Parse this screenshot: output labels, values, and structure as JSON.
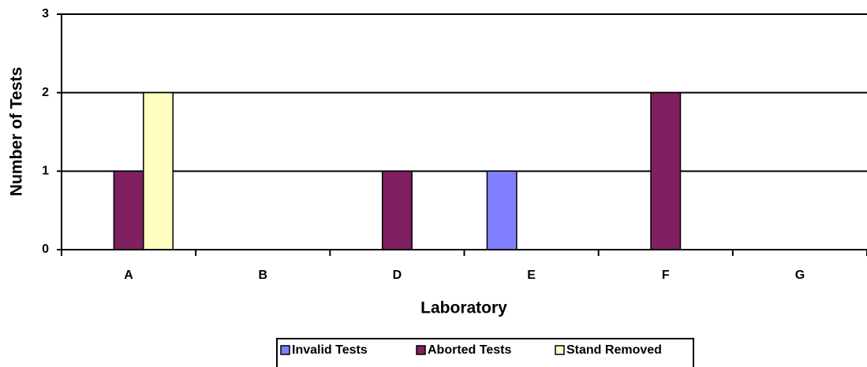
{
  "chart_data": {
    "type": "bar",
    "x_label": "Laboratory",
    "y_label": "Number of Tests",
    "categories": [
      "A",
      "B",
      "D",
      "E",
      "F",
      "G"
    ],
    "series": [
      {
        "name": "Invalid Tests",
        "color": "#8080ff",
        "values": [
          0,
          0,
          0,
          1,
          0,
          0
        ]
      },
      {
        "name": "Aborted Tests",
        "color": "#802060",
        "values": [
          1,
          0,
          1,
          0,
          2,
          0
        ]
      },
      {
        "name": "Stand Removed",
        "color": "#ffffc0",
        "values": [
          2,
          0,
          0,
          0,
          0,
          0
        ]
      }
    ],
    "ylim": [
      0,
      3
    ],
    "yticks": [
      0,
      1,
      2,
      3
    ],
    "grid": true,
    "legend": "bottom"
  }
}
